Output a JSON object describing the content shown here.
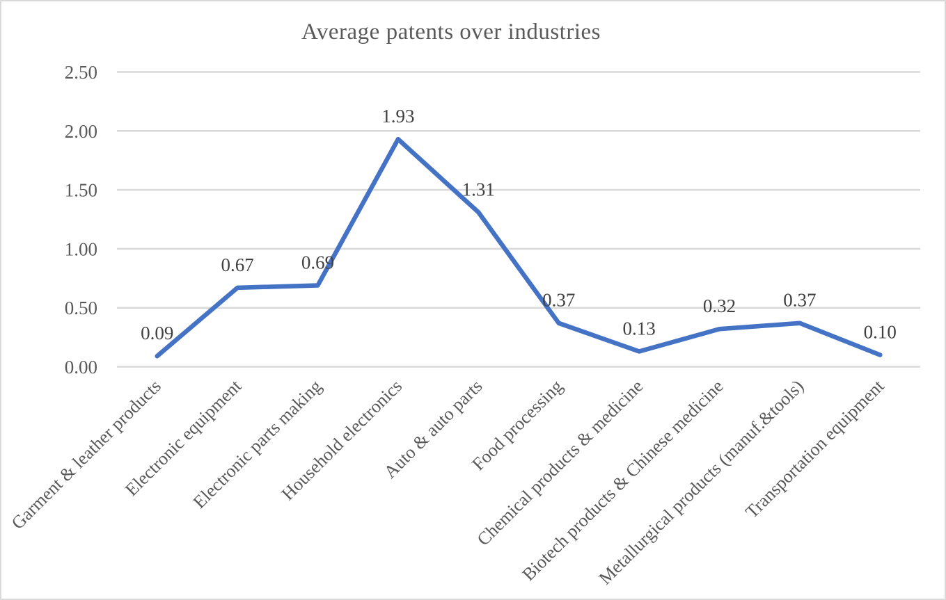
{
  "chart_data": {
    "type": "line",
    "title": "Average patents over industries",
    "categories": [
      "Garment & leather products",
      "Electronic equipment",
      "Electronic parts making",
      "Household electronics",
      "Auto & auto parts",
      "Food processing",
      "Chemical products & medicine",
      "Biotech products & Chinese medicine",
      "Metallurgical products (manuf.&tools)",
      "Transportation equipment"
    ],
    "values": [
      0.09,
      0.67,
      0.69,
      1.93,
      1.31,
      0.37,
      0.13,
      0.32,
      0.37,
      0.1
    ],
    "data_labels": [
      "0.09",
      "0.67",
      "0.69",
      "1.93",
      "1.31",
      "0.37",
      "0.13",
      "0.32",
      "0.37",
      "0.10"
    ],
    "y_tick_labels": [
      "0.00",
      "0.50",
      "1.00",
      "1.50",
      "2.00",
      "2.50"
    ],
    "y_tick_values": [
      0,
      0.5,
      1,
      1.5,
      2,
      2.5
    ],
    "ylim": [
      0,
      2.5
    ],
    "xlabel": "",
    "ylabel": "",
    "grid": true,
    "legend": "none",
    "colors": {
      "line": "#4472C4",
      "gridline": "#D9D9D9",
      "axis_text": "#595959",
      "data_label_text": "#404040",
      "title_text": "#595959",
      "frame_border": "#D9D9D9",
      "background": "#FFFFFF"
    }
  }
}
